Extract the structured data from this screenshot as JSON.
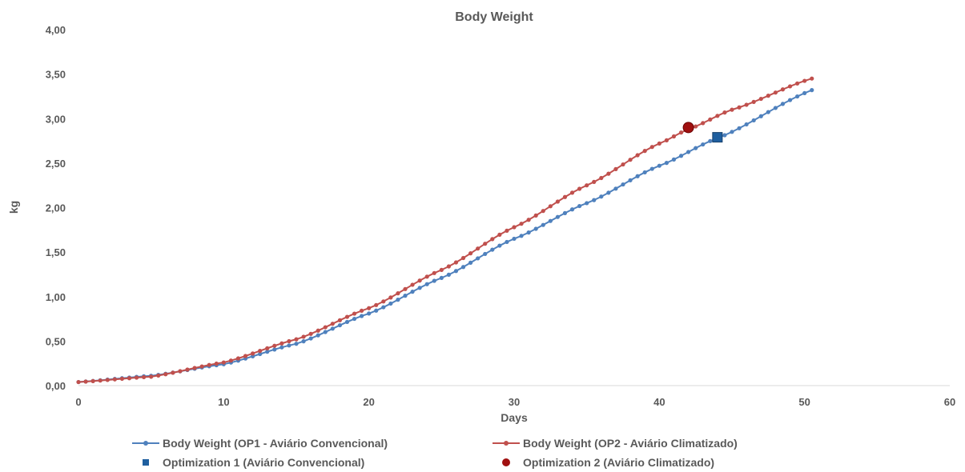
{
  "chart_data": {
    "type": "scatter",
    "title": "Body Weight",
    "xlabel": "Days",
    "ylabel": "kg",
    "xlim": [
      0,
      60
    ],
    "ylim": [
      0,
      4
    ],
    "x_ticks": [
      "0",
      "10",
      "20",
      "30",
      "40",
      "50",
      "60"
    ],
    "y_ticks": [
      "0,00",
      "0,50",
      "1,00",
      "1,50",
      "2,00",
      "2,50",
      "3,00",
      "3,50",
      "4,00"
    ],
    "grid": false,
    "legend_position": "bottom",
    "series": [
      {
        "name": "Body Weight (OP1 - Aviário Convencional)",
        "color": "#4F81BD",
        "marker": "line-with-dots",
        "x_start": 0,
        "x_end": 50.5,
        "x_step": 0.5,
        "points": [
          [
            0,
            0.04
          ],
          [
            5,
            0.11
          ],
          [
            10,
            0.24
          ],
          [
            15,
            0.47
          ],
          [
            20,
            0.81
          ],
          [
            25,
            1.21
          ],
          [
            30,
            1.65
          ],
          [
            35,
            2.05
          ],
          [
            40,
            2.47
          ],
          [
            44,
            2.78
          ],
          [
            50.5,
            3.32
          ]
        ]
      },
      {
        "name": "Body Weight (OP2 - Aviário Climatizado)",
        "color": "#C0504D",
        "marker": "line-with-dots",
        "x_start": 0,
        "x_end": 50.5,
        "x_step": 0.5,
        "points": [
          [
            0,
            0.04
          ],
          [
            5,
            0.1
          ],
          [
            10,
            0.26
          ],
          [
            15,
            0.52
          ],
          [
            20,
            0.87
          ],
          [
            25,
            1.3
          ],
          [
            30,
            1.78
          ],
          [
            35,
            2.25
          ],
          [
            40,
            2.72
          ],
          [
            42,
            2.88
          ],
          [
            45,
            3.1
          ],
          [
            50.5,
            3.45
          ]
        ]
      },
      {
        "name": "Optimization 1 (Aviário Convencional)",
        "color": "#1F5F9F",
        "marker": "square",
        "x": [
          44
        ],
        "y": [
          2.79
        ]
      },
      {
        "name": "Optimization 2 (Aviário Climatizado)",
        "color": "#A01010",
        "marker": "circle",
        "x": [
          42
        ],
        "y": [
          2.9
        ]
      }
    ]
  }
}
